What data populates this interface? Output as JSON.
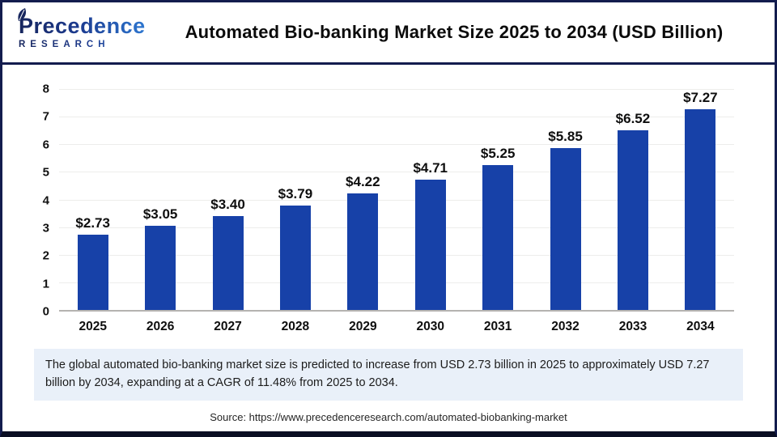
{
  "header": {
    "logo": {
      "name": "Precedence",
      "subtitle": "RESEARCH"
    },
    "title": "Automated Bio-banking Market Size 2025 to 2034 (USD Billion)"
  },
  "chart_data": {
    "type": "bar",
    "title": "Automated Bio-banking Market Size 2025 to 2034 (USD Billion)",
    "categories": [
      "2025",
      "2026",
      "2027",
      "2028",
      "2029",
      "2030",
      "2031",
      "2032",
      "2033",
      "2034"
    ],
    "values": [
      2.73,
      3.05,
      3.4,
      3.79,
      4.22,
      4.71,
      5.25,
      5.85,
      6.52,
      7.27
    ],
    "bar_labels": [
      "$2.73",
      "$3.05",
      "$3.40",
      "$3.79",
      "$4.22",
      "$4.71",
      "$5.25",
      "$5.85",
      "$6.52",
      "$7.27"
    ],
    "xlabel": "",
    "ylabel": "",
    "ylim": [
      0,
      8
    ],
    "yticks": [
      0,
      1,
      2,
      3,
      4,
      5,
      6,
      7,
      8
    ],
    "grid": true,
    "legend": false
  },
  "footer": {
    "note": "The global automated bio-banking market size is predicted to increase from USD 2.73 billion in 2025 to approximately USD 7.27 billion by 2034, expanding at a CAGR of 11.48% from 2025 to 2034.",
    "source": "Source: https://www.precedenceresearch.com/automated-biobanking-market"
  },
  "colors": {
    "bar": "#1741A8",
    "navy": "#131C4E",
    "note_bg": "#E9F0F9",
    "gridline": "#EDEDEB"
  }
}
